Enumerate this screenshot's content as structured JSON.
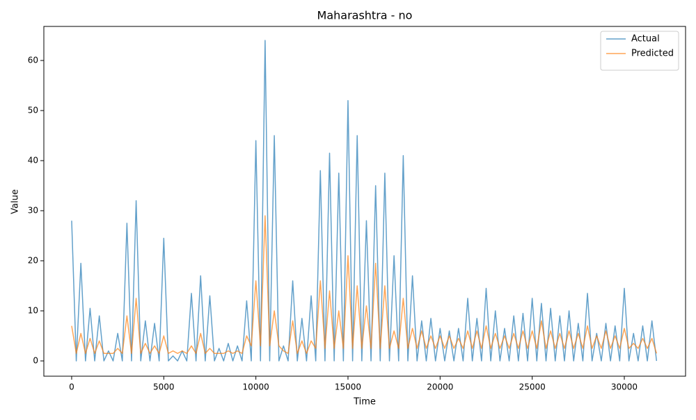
{
  "chart_data": {
    "type": "line",
    "title": "Maharashtra - no",
    "x_label": "Time",
    "y_label": "Value",
    "x": [
      0,
      250,
      500,
      750,
      1000,
      1250,
      1500,
      1750,
      2000,
      2250,
      2500,
      2750,
      3000,
      3250,
      3500,
      3750,
      4000,
      4250,
      4500,
      4750,
      5000,
      5250,
      5500,
      5750,
      6000,
      6250,
      6500,
      6750,
      7000,
      7250,
      7500,
      7750,
      8000,
      8250,
      8500,
      8750,
      9000,
      9250,
      9500,
      9750,
      10000,
      10250,
      10500,
      10750,
      11000,
      11250,
      11500,
      11750,
      12000,
      12250,
      12500,
      12750,
      13000,
      13250,
      13500,
      13750,
      14000,
      14250,
      14500,
      14750,
      15000,
      15250,
      15500,
      15750,
      16000,
      16250,
      16500,
      16750,
      17000,
      17250,
      17500,
      17750,
      18000,
      18250,
      18500,
      18750,
      19000,
      19250,
      19500,
      19750,
      20000,
      20250,
      20500,
      20750,
      21000,
      21250,
      21500,
      21750,
      22000,
      22250,
      22500,
      22750,
      23000,
      23250,
      23500,
      23750,
      24000,
      24250,
      24500,
      24750,
      25000,
      25250,
      25500,
      25750,
      26000,
      26250,
      26500,
      26750,
      27000,
      27250,
      27500,
      27750,
      28000,
      28250,
      28500,
      28750,
      29000,
      29250,
      29500,
      29750,
      30000,
      30250,
      30500,
      30750,
      31000,
      31250,
      31500,
      31750
    ],
    "series": [
      {
        "name": "Actual",
        "color": "#1f77b4",
        "values": [
          28,
          0,
          19.5,
          0,
          10.5,
          0,
          9,
          0,
          2,
          0,
          5.5,
          0,
          27.5,
          0,
          32,
          0,
          8,
          0,
          7.5,
          0,
          24.5,
          0,
          1,
          0,
          2,
          0,
          13.5,
          0,
          17,
          0,
          13,
          0,
          2.5,
          0,
          3.5,
          0,
          3,
          0,
          12,
          0,
          44,
          0,
          64,
          0,
          45,
          0,
          3,
          0,
          16,
          0,
          8.5,
          0,
          13,
          0,
          38,
          0,
          41.5,
          0,
          37.5,
          0,
          52,
          0,
          45,
          0,
          28,
          0,
          35,
          0,
          37.5,
          0,
          21,
          0,
          41,
          0,
          17,
          0,
          8,
          0,
          8.5,
          0,
          6.5,
          0,
          6,
          0,
          6.5,
          0,
          12.5,
          0,
          8.5,
          0,
          14.5,
          0,
          10,
          0,
          6.5,
          0,
          9,
          0,
          9.5,
          0,
          12.5,
          0,
          11.5,
          0,
          10.5,
          0,
          9,
          0,
          10,
          0,
          7.5,
          0,
          13.5,
          0,
          5.5,
          0,
          7.5,
          0,
          7,
          0,
          14.5,
          0,
          5.5,
          0,
          7,
          0,
          8,
          0
        ]
      },
      {
        "name": "Predicted",
        "color": "#ff7f0e",
        "values": [
          7,
          1.5,
          5.5,
          1.5,
          4.5,
          1.5,
          4,
          1.5,
          1.5,
          1.5,
          2.5,
          1.5,
          9,
          1.5,
          12.5,
          1.5,
          3.5,
          1.5,
          3,
          1.5,
          5,
          1.5,
          2,
          1.5,
          2,
          1.5,
          3,
          1.5,
          5.5,
          1.5,
          2.5,
          1.5,
          1.5,
          1.5,
          2,
          1.5,
          2,
          1.5,
          5,
          3,
          16,
          3,
          29,
          3,
          10,
          3,
          2,
          1.5,
          8,
          1.5,
          4,
          1.5,
          4,
          2.5,
          16,
          2.5,
          14,
          2.5,
          10,
          2.5,
          21,
          2.5,
          15,
          2.5,
          11,
          2.5,
          19.5,
          2.5,
          15,
          2.5,
          6,
          2.5,
          12.5,
          2.5,
          6.5,
          2.5,
          6,
          2.5,
          5,
          2.5,
          5,
          2.5,
          5,
          2.5,
          4.5,
          2.5,
          6,
          2.5,
          6,
          2.5,
          7,
          2.5,
          5.5,
          2.5,
          5,
          2.5,
          5.5,
          2.5,
          6,
          2.5,
          6,
          2.5,
          8,
          2.5,
          6,
          2.5,
          5.5,
          2.5,
          6,
          2.5,
          5.5,
          2.5,
          7,
          2.5,
          5,
          2.5,
          6,
          2.5,
          5,
          2.5,
          6.5,
          2.5,
          3.5,
          2.5,
          4.5,
          2.5,
          4.5,
          1.5
        ]
      }
    ],
    "xlim": [
      -1510,
      33325
    ],
    "xticks": [
      0,
      5000,
      10000,
      15000,
      20000,
      25000,
      30000
    ],
    "ylim": [
      -3.05,
      66.8
    ],
    "yticks": [
      0,
      10,
      20,
      30,
      40,
      50,
      60
    ],
    "legend": "upper right",
    "grid": false
  }
}
